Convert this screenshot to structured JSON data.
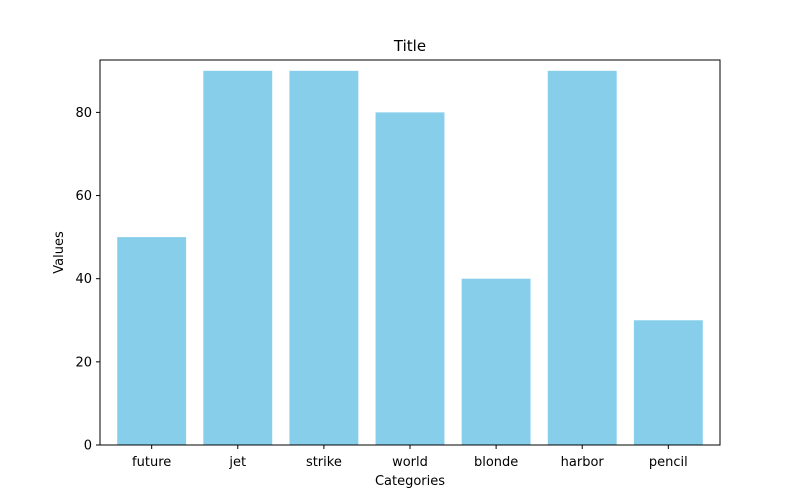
{
  "chart_data": {
    "type": "bar",
    "title": "Title",
    "xlabel": "Categories",
    "ylabel": "Values",
    "categories": [
      "future",
      "jet",
      "strike",
      "world",
      "blonde",
      "harbor",
      "pencil"
    ],
    "values": [
      50,
      90,
      90,
      80,
      40,
      90,
      30
    ],
    "ylim": [
      0,
      92.6
    ],
    "yticks": [
      0,
      20,
      40,
      60,
      80
    ],
    "bar_color": "#87ceeb",
    "grid": false,
    "legend": "none"
  }
}
